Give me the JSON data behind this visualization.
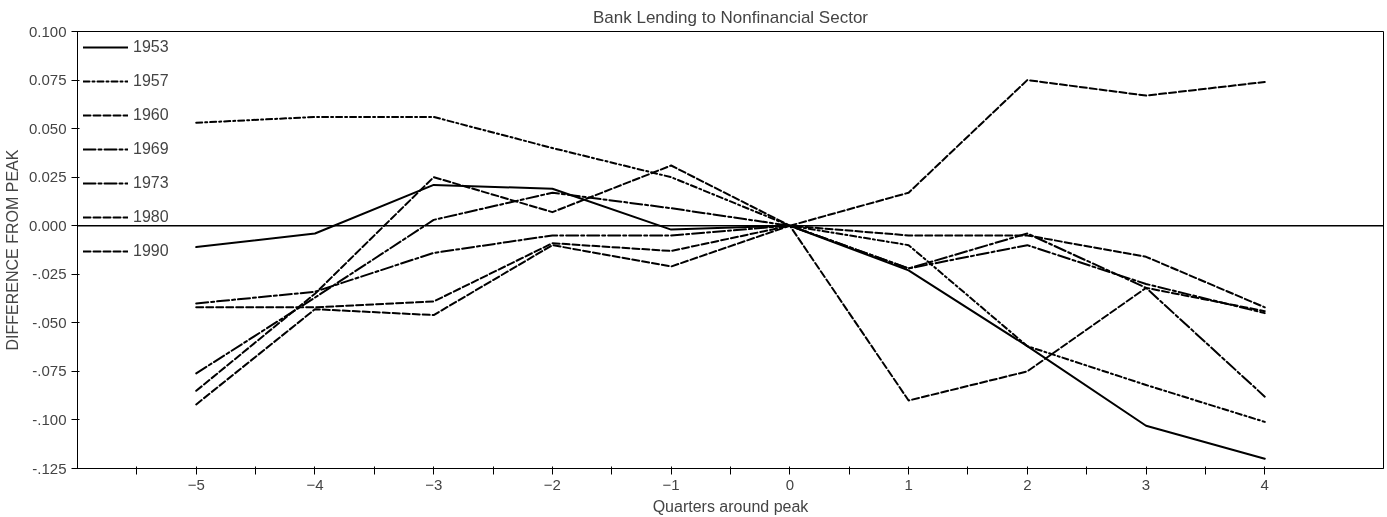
{
  "chart_data": {
    "type": "line",
    "title": "Bank Lending to Nonfinancial Sector",
    "xlabel": "Quarters around peak",
    "ylabel": "DIFFERENCE FROM PEAK",
    "x": [
      -5,
      -4,
      -3,
      -2,
      -1,
      0,
      1,
      2,
      3,
      4
    ],
    "series": [
      {
        "name": "1953",
        "color": "#000000",
        "line_style": "solid",
        "values": [
          -0.011,
          -0.004,
          0.021,
          0.019,
          -0.002,
          0,
          -0.023,
          -0.062,
          -0.103,
          -0.12
        ]
      },
      {
        "name": "1957",
        "color": "#000000",
        "line_style": "dotdash",
        "values": [
          0.053,
          0.056,
          0.056,
          0.04,
          0.025,
          0,
          -0.01,
          -0.062,
          -0.082,
          -0.101
        ]
      },
      {
        "name": "1960",
        "color": "#000000",
        "line_style": "dashed",
        "values": [
          -0.085,
          -0.035,
          0.025,
          0.007,
          0.031,
          0,
          -0.005,
          -0.005,
          -0.016,
          -0.042
        ]
      },
      {
        "name": "1969",
        "color": "#000000",
        "line_style": "dashdot",
        "values": [
          -0.04,
          -0.034,
          -0.014,
          -0.005,
          -0.005,
          0,
          -0.022,
          -0.004,
          -0.032,
          -0.088
        ]
      },
      {
        "name": "1973",
        "color": "#000000",
        "line_style": "dashdot",
        "values": [
          -0.076,
          -0.037,
          0.003,
          0.017,
          0.009,
          0,
          -0.022,
          -0.01,
          -0.03,
          -0.045
        ]
      },
      {
        "name": "1980",
        "color": "#000000",
        "line_style": "dashed",
        "values": [
          -0.092,
          -0.043,
          -0.046,
          -0.01,
          -0.021,
          0,
          -0.09,
          -0.075,
          -0.032,
          -0.044
        ]
      },
      {
        "name": "1990",
        "color": "#000000",
        "line_style": "dashed",
        "values": [
          -0.042,
          -0.042,
          -0.039,
          -0.009,
          -0.013,
          0,
          0.017,
          0.075,
          0.067,
          0.074
        ]
      }
    ],
    "xlim": [
      -6,
      5
    ],
    "ylim": [
      -0.125,
      0.1
    ],
    "xticks": [
      -5,
      -4,
      -3,
      -2,
      -1,
      0,
      1,
      2,
      3,
      4,
      {
        "value": -5.5,
        "label": null
      },
      {
        "value": -4.5,
        "label": null
      },
      {
        "value": -3.5,
        "label": null
      },
      {
        "value": -2.5,
        "label": null
      },
      {
        "value": -1.5,
        "label": null
      },
      {
        "value": -0.5,
        "label": null
      },
      {
        "value": 0.5,
        "label": null
      },
      {
        "value": 1.5,
        "label": null
      },
      {
        "value": 2.5,
        "label": null
      },
      {
        "value": 3.5,
        "label": null
      }
    ],
    "yticks": [
      {
        "value": 0.1,
        "label": "0.100"
      },
      {
        "value": 0.075,
        "label": "0.075"
      },
      {
        "value": 0.05,
        "label": "0.050"
      },
      {
        "value": 0.025,
        "label": "0.025"
      },
      {
        "value": 0,
        "label": "0.000"
      },
      {
        "value": -0.025,
        "label": "-.025"
      },
      {
        "value": -0.05,
        "label": "-.050"
      },
      {
        "value": -0.075,
        "label": "-.075"
      },
      {
        "value": -0.1,
        "label": "-.100"
      },
      {
        "value": -0.125,
        "label": "-.125"
      }
    ],
    "ref_lines": [
      {
        "axis": "y",
        "value": 0,
        "color": "#000000",
        "line_style": "solid"
      }
    ],
    "grid": false,
    "legend": "top left",
    "marker": "none"
  }
}
